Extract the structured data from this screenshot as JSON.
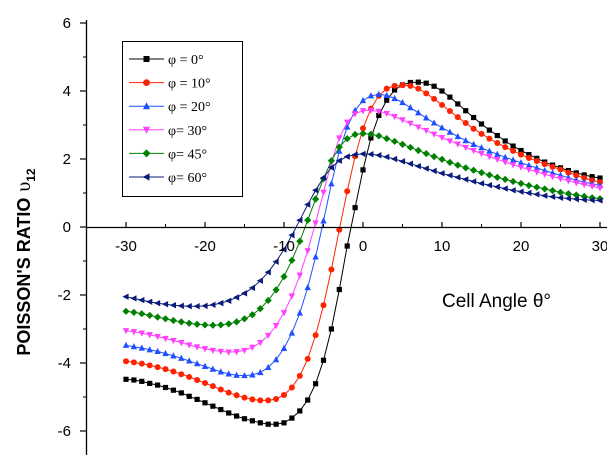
{
  "chart_data": {
    "type": "line",
    "title": "",
    "xlabel": "Cell Angle θ°",
    "ylabel_main": "POISSON'S RATIO",
    "ylabel_symbol": "υ",
    "ylabel_subscript": "12",
    "xlim": [
      -35,
      30
    ],
    "ylim": [
      -6.6,
      6
    ],
    "x_ticks": [
      -30,
      -20,
      -10,
      0,
      10,
      20,
      30
    ],
    "x_tick_labels": [
      "-30",
      "-20",
      "-10",
      "0",
      "10",
      "20",
      "30"
    ],
    "y_ticks": [
      -6,
      -4,
      -2,
      0,
      2,
      4,
      6
    ],
    "y_tick_labels": [
      "-6",
      "-4",
      "-2",
      "0",
      "2",
      "4",
      "6"
    ],
    "grid": false,
    "legend_position": "top-left",
    "x": [
      -30,
      -29,
      -28,
      -27,
      -26,
      -25,
      -24,
      -23,
      -22,
      -21,
      -20,
      -19,
      -18,
      -17,
      -16,
      -15,
      -14,
      -13,
      -12,
      -11,
      -10,
      -9,
      -8,
      -7,
      -6,
      -5,
      -4,
      -3,
      -2,
      -1,
      0,
      1,
      2,
      3,
      4,
      5,
      6,
      7,
      8,
      9,
      10,
      11,
      12,
      13,
      14,
      15,
      16,
      17,
      18,
      19,
      20,
      21,
      22,
      23,
      24,
      25,
      26,
      27,
      28,
      29,
      30
    ],
    "series": [
      {
        "name": "φ = 0°",
        "color": "#000000",
        "marker": "square",
        "values": [
          -4.48,
          -4.5,
          -4.54,
          -4.6,
          -4.65,
          -4.72,
          -4.8,
          -4.88,
          -4.98,
          -5.07,
          -5.17,
          -5.27,
          -5.37,
          -5.47,
          -5.56,
          -5.64,
          -5.7,
          -5.76,
          -5.8,
          -5.8,
          -5.76,
          -5.62,
          -5.41,
          -5.09,
          -4.61,
          -3.92,
          -3.0,
          -1.84,
          -0.56,
          0.57,
          1.68,
          2.62,
          3.28,
          3.73,
          4.03,
          4.18,
          4.25,
          4.26,
          4.23,
          4.14,
          4.0,
          3.82,
          3.62,
          3.42,
          3.22,
          3.03,
          2.85,
          2.69,
          2.53,
          2.38,
          2.25,
          2.13,
          2.02,
          1.91,
          1.82,
          1.74,
          1.66,
          1.59,
          1.53,
          1.48,
          1.44
        ]
      },
      {
        "name": "φ = 10°",
        "color": "#ff2200",
        "marker": "circle",
        "values": [
          -3.95,
          -3.98,
          -4.02,
          -4.07,
          -4.12,
          -4.18,
          -4.25,
          -4.33,
          -4.41,
          -4.5,
          -4.59,
          -4.68,
          -4.78,
          -4.87,
          -4.95,
          -5.02,
          -5.07,
          -5.1,
          -5.1,
          -5.06,
          -4.94,
          -4.72,
          -4.38,
          -3.88,
          -3.18,
          -2.3,
          -1.25,
          -0.08,
          1.05,
          2.08,
          2.9,
          3.48,
          3.86,
          4.07,
          4.15,
          4.17,
          4.15,
          4.07,
          3.93,
          3.77,
          3.59,
          3.41,
          3.23,
          3.06,
          2.89,
          2.74,
          2.6,
          2.47,
          2.35,
          2.24,
          2.13,
          2.03,
          1.94,
          1.85,
          1.77,
          1.69,
          1.6,
          1.52,
          1.44,
          1.37,
          1.32
        ]
      },
      {
        "name": "φ = 20°",
        "color": "#1e50ff",
        "marker": "triangle-up",
        "values": [
          -3.48,
          -3.52,
          -3.56,
          -3.61,
          -3.66,
          -3.72,
          -3.79,
          -3.86,
          -3.94,
          -4.02,
          -4.1,
          -4.18,
          -4.26,
          -4.32,
          -4.36,
          -4.37,
          -4.35,
          -4.28,
          -4.13,
          -3.9,
          -3.57,
          -3.12,
          -2.53,
          -1.78,
          -0.88,
          0.18,
          1.27,
          2.23,
          2.94,
          3.43,
          3.72,
          3.86,
          3.9,
          3.87,
          3.78,
          3.66,
          3.51,
          3.36,
          3.21,
          3.06,
          2.92,
          2.79,
          2.66,
          2.54,
          2.43,
          2.33,
          2.23,
          2.14,
          2.05,
          1.97,
          1.89,
          1.81,
          1.74,
          1.66,
          1.59,
          1.52,
          1.45,
          1.38,
          1.32,
          1.27,
          1.22
        ]
      },
      {
        "name": "φ= 30°",
        "color": "#ff40ff",
        "marker": "triangle-down",
        "values": [
          -3.05,
          -3.08,
          -3.12,
          -3.17,
          -3.22,
          -3.28,
          -3.34,
          -3.4,
          -3.47,
          -3.53,
          -3.58,
          -3.63,
          -3.66,
          -3.68,
          -3.67,
          -3.63,
          -3.54,
          -3.4,
          -3.19,
          -2.9,
          -2.52,
          -2.03,
          -1.42,
          -0.7,
          0.12,
          1.02,
          1.9,
          2.62,
          3.08,
          3.33,
          3.42,
          3.43,
          3.4,
          3.34,
          3.25,
          3.15,
          3.05,
          2.94,
          2.84,
          2.73,
          2.63,
          2.53,
          2.44,
          2.34,
          2.25,
          2.16,
          2.07,
          1.99,
          1.91,
          1.83,
          1.76,
          1.69,
          1.62,
          1.55,
          1.48,
          1.42,
          1.36,
          1.3,
          1.25,
          1.2,
          1.15
        ]
      },
      {
        "name": "φ= 45°",
        "color": "#008000",
        "marker": "diamond",
        "values": [
          -2.48,
          -2.51,
          -2.55,
          -2.6,
          -2.65,
          -2.7,
          -2.75,
          -2.79,
          -2.83,
          -2.86,
          -2.88,
          -2.89,
          -2.88,
          -2.85,
          -2.79,
          -2.7,
          -2.58,
          -2.4,
          -2.16,
          -1.85,
          -1.46,
          -0.98,
          -0.42,
          0.2,
          0.82,
          1.42,
          1.95,
          2.35,
          2.6,
          2.72,
          2.75,
          2.73,
          2.68,
          2.6,
          2.52,
          2.43,
          2.34,
          2.25,
          2.16,
          2.07,
          1.99,
          1.9,
          1.82,
          1.74,
          1.67,
          1.6,
          1.53,
          1.46,
          1.4,
          1.34,
          1.28,
          1.22,
          1.17,
          1.12,
          1.07,
          1.02,
          0.98,
          0.94,
          0.9,
          0.86,
          0.83
        ]
      },
      {
        "name": "φ= 60°",
        "color": "#0a1a7a",
        "marker": "triangle-left",
        "values": [
          -2.05,
          -2.1,
          -2.15,
          -2.2,
          -2.24,
          -2.27,
          -2.3,
          -2.32,
          -2.33,
          -2.33,
          -2.32,
          -2.29,
          -2.24,
          -2.17,
          -2.07,
          -1.95,
          -1.79,
          -1.58,
          -1.33,
          -1.02,
          -0.66,
          -0.24,
          0.2,
          0.66,
          1.08,
          1.45,
          1.75,
          1.95,
          2.07,
          2.13,
          2.15,
          2.14,
          2.11,
          2.06,
          2.0,
          1.93,
          1.86,
          1.79,
          1.72,
          1.65,
          1.58,
          1.52,
          1.46,
          1.4,
          1.34,
          1.28,
          1.23,
          1.18,
          1.13,
          1.08,
          1.04,
          1.0,
          0.96,
          0.92,
          0.89,
          0.86,
          0.84,
          0.82,
          0.8,
          0.79,
          0.78
        ]
      }
    ]
  }
}
